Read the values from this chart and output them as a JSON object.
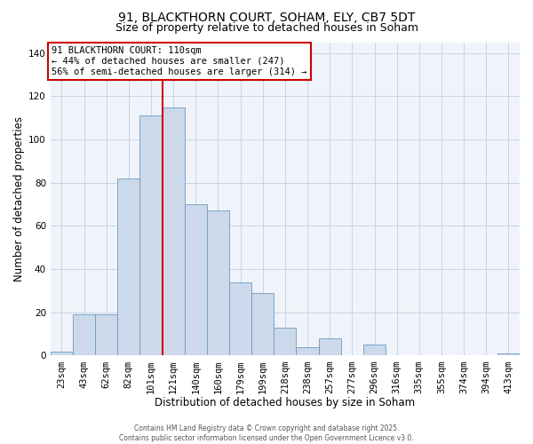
{
  "title1": "91, BLACKTHORN COURT, SOHAM, ELY, CB7 5DT",
  "title2": "Size of property relative to detached houses in Soham",
  "xlabel": "Distribution of detached houses by size in Soham",
  "ylabel": "Number of detached properties",
  "bar_labels": [
    "23sqm",
    "43sqm",
    "62sqm",
    "82sqm",
    "101sqm",
    "121sqm",
    "140sqm",
    "160sqm",
    "179sqm",
    "199sqm",
    "218sqm",
    "238sqm",
    "257sqm",
    "277sqm",
    "296sqm",
    "316sqm",
    "335sqm",
    "355sqm",
    "374sqm",
    "394sqm",
    "413sqm"
  ],
  "bar_heights": [
    2,
    19,
    19,
    82,
    111,
    115,
    70,
    67,
    34,
    29,
    13,
    4,
    8,
    0,
    5,
    0,
    0,
    0,
    0,
    0,
    1
  ],
  "bar_color": "#ccd9eb",
  "bar_edge_color": "#6a9abf",
  "ylim": [
    0,
    145
  ],
  "yticks": [
    0,
    20,
    40,
    60,
    80,
    100,
    120,
    140
  ],
  "red_line_index": 5,
  "red_line_color": "#cc0000",
  "annotation_line1": "91 BLACKTHORN COURT: 110sqm",
  "annotation_line2": "← 44% of detached houses are smaller (247)",
  "annotation_line3": "56% of semi-detached houses are larger (314) →",
  "annotation_box_color": "#ffffff",
  "annotation_box_edge": "#cc0000",
  "footer1": "Contains HM Land Registry data © Crown copyright and database right 2025.",
  "footer2": "Contains public sector information licensed under the Open Government Licence v3.0.",
  "background_color": "#ffffff",
  "plot_bg_color": "#f0f4fa",
  "grid_color": "#c5d5e5",
  "title_fontsize": 10,
  "subtitle_fontsize": 9,
  "axis_label_fontsize": 8.5,
  "tick_fontsize": 7.5,
  "annotation_fontsize": 7.5,
  "footer_fontsize": 5.5
}
